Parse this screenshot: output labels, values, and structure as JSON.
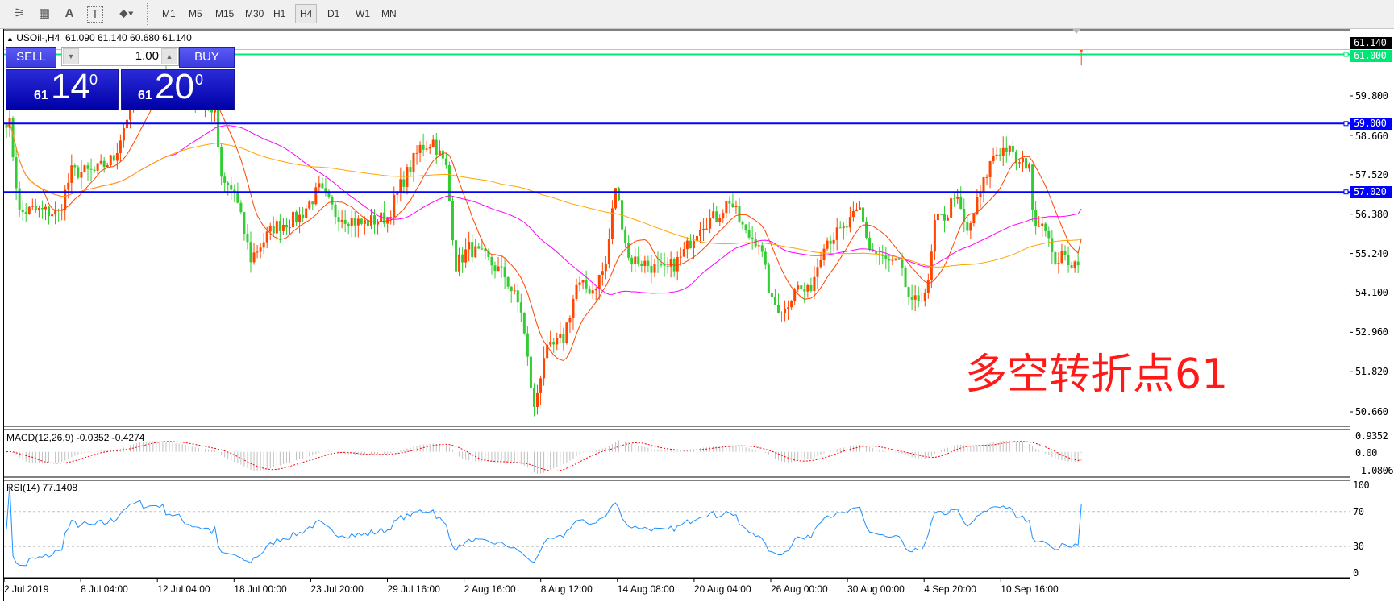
{
  "toolbar": {
    "icons": [
      "elliott-wave-icon",
      "fibonacci-icon",
      "text-icon",
      "text-label-icon",
      "arrows-dropdown-icon"
    ],
    "icon_glyphs": [
      "⚞",
      "▦",
      "A",
      "T",
      "⬥▾"
    ],
    "timeframes": [
      "M1",
      "M5",
      "M15",
      "M30",
      "H1",
      "H4",
      "D1",
      "W1",
      "MN"
    ],
    "active_timeframe": "H4"
  },
  "chart": {
    "symbol_header": "USOil-,H4",
    "ohlc": "61.090 61.140 60.680 61.140",
    "last_bar": {
      "open": 61.09,
      "high": 61.14,
      "low": 60.68,
      "close": 61.14
    },
    "bull_color": "#ff4500",
    "bear_color": "#32cd32",
    "ma_colors": {
      "fast": "#ff4500",
      "mid": "#ff00ff",
      "slow": "#ffa500"
    },
    "price_ticks": [
      "59.800",
      "58.660",
      "57.520",
      "56.380",
      "55.240",
      "54.100",
      "52.960",
      "51.820",
      "50.660"
    ],
    "current_price_tag": "61.140",
    "hlines": [
      {
        "price": 61.0,
        "label": "61.000",
        "color": "#00e676"
      },
      {
        "price": 59.0,
        "label": "59.000",
        "color": "#0000ff"
      },
      {
        "price": 57.02,
        "label": "57.020",
        "color": "#0000ff"
      }
    ],
    "annotation": "多空转折点61",
    "close_keypoints": [
      [
        0,
        59.1
      ],
      [
        1,
        58.98
      ],
      [
        4,
        56.4
      ],
      [
        8,
        56.5
      ],
      [
        16,
        56.4
      ],
      [
        20,
        57.6
      ],
      [
        27,
        57.6
      ],
      [
        33,
        58.0
      ],
      [
        37,
        59.2
      ],
      [
        41,
        60.0
      ],
      [
        48,
        60.3
      ],
      [
        57,
        59.7
      ],
      [
        64,
        59.4
      ],
      [
        66,
        57.3
      ],
      [
        70,
        57.0
      ],
      [
        75,
        55.1
      ],
      [
        82,
        56.0
      ],
      [
        90,
        56.3
      ],
      [
        96,
        57.1
      ],
      [
        101,
        56.4
      ],
      [
        109,
        56.1
      ],
      [
        117,
        56.3
      ],
      [
        121,
        57.2
      ],
      [
        127,
        58.3
      ],
      [
        131,
        58.5
      ],
      [
        135,
        57.7
      ],
      [
        138,
        54.9
      ],
      [
        142,
        55.4
      ],
      [
        147,
        55.1
      ],
      [
        153,
        54.6
      ],
      [
        158,
        53.6
      ],
      [
        162,
        50.7
      ],
      [
        165,
        52.3
      ],
      [
        171,
        52.8
      ],
      [
        175,
        54.3
      ],
      [
        180,
        54.2
      ],
      [
        184,
        54.9
      ],
      [
        187,
        57.2
      ],
      [
        191,
        55.1
      ],
      [
        195,
        55.0
      ],
      [
        202,
        54.7
      ],
      [
        207,
        55.1
      ],
      [
        213,
        56.1
      ],
      [
        218,
        56.3
      ],
      [
        222,
        56.8
      ],
      [
        227,
        55.8
      ],
      [
        231,
        55.6
      ],
      [
        235,
        53.8
      ],
      [
        239,
        53.6
      ],
      [
        242,
        54.3
      ],
      [
        246,
        54.1
      ],
      [
        248,
        54.6
      ],
      [
        251,
        55.6
      ],
      [
        257,
        55.9
      ],
      [
        262,
        56.5
      ],
      [
        265,
        55.4
      ],
      [
        270,
        55.0
      ],
      [
        274,
        54.9
      ],
      [
        278,
        53.7
      ],
      [
        283,
        54.3
      ],
      [
        285,
        56.1
      ],
      [
        289,
        56.4
      ],
      [
        291,
        57.0
      ],
      [
        295,
        55.8
      ],
      [
        299,
        57.0
      ],
      [
        303,
        58.1
      ],
      [
        307,
        58.3
      ],
      [
        311,
        57.8
      ],
      [
        314,
        57.9
      ],
      [
        315,
        56.3
      ],
      [
        319,
        56.1
      ],
      [
        321,
        55.1
      ],
      [
        325,
        55.1
      ],
      [
        329,
        54.9
      ]
    ]
  },
  "trade_panel": {
    "sell_label": "SELL",
    "buy_label": "BUY",
    "lot": "1.00",
    "sell_price": {
      "big_figure": "61",
      "pips": "14",
      "fraction": "0"
    },
    "buy_price": {
      "big_figure": "61",
      "pips": "20",
      "fraction": "0"
    }
  },
  "macd": {
    "label": "MACD(12,26,9) -0.0352 -0.4274",
    "ticks": [
      "0.9352",
      "0.00",
      "-1.0806"
    ],
    "range": [
      -1.0806,
      0.9352
    ],
    "hist_color": "#c0c0c0",
    "signal_color": "#ff0000"
  },
  "rsi": {
    "label": "RSI(14) 77.1408",
    "ticks": [
      "100",
      "70",
      "30",
      "0"
    ],
    "levels": [
      70,
      30
    ],
    "line_color": "#1e90ff"
  },
  "time_axis": [
    "2 Jul 2019",
    "8 Jul 04:00",
    "12 Jul 04:00",
    "18 Jul 00:00",
    "23 Jul 20:00",
    "29 Jul 16:00",
    "2 Aug 16:00",
    "8 Aug 12:00",
    "14 Aug 08:00",
    "20 Aug 04:00",
    "26 Aug 00:00",
    "30 Aug 00:00",
    "4 Sep 20:00",
    "10 Sep 16:00"
  ]
}
